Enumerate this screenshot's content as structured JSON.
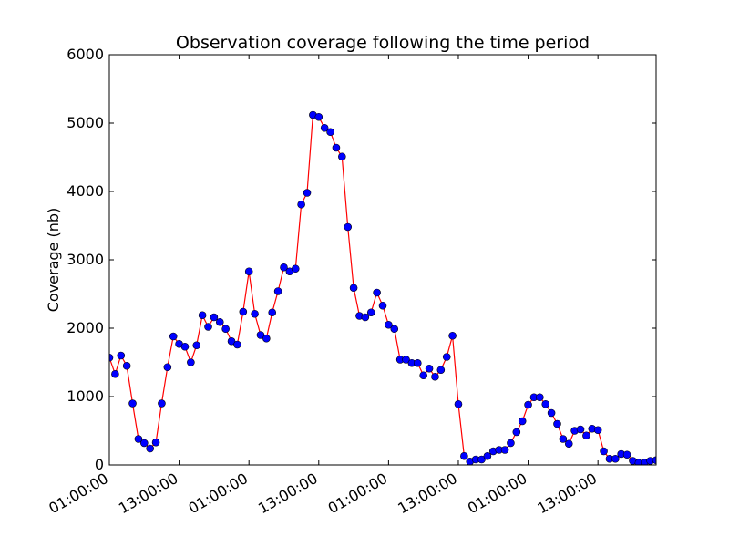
{
  "chart_data": {
    "type": "line",
    "title": "Observation coverage following the time period",
    "xlabel": "",
    "ylabel": "Coverage (nb)",
    "ylim": [
      0,
      6000
    ],
    "yticks": [
      0,
      1000,
      2000,
      3000,
      4000,
      5000,
      6000
    ],
    "xlim": [
      0,
      94
    ],
    "xticks": [
      {
        "x": 0,
        "label": "01:00:00"
      },
      {
        "x": 12,
        "label": "13:00:00"
      },
      {
        "x": 24,
        "label": "01:00:00"
      },
      {
        "x": 36,
        "label": "13:00:00"
      },
      {
        "x": 48,
        "label": "01:00:00"
      },
      {
        "x": 60,
        "label": "13:00:00"
      },
      {
        "x": 72,
        "label": "01:00:00"
      },
      {
        "x": 84,
        "label": "13:00:00"
      }
    ],
    "grid": false,
    "line_color": "#ff0000",
    "marker_color": "#0000ff",
    "series": [
      {
        "x": [
          0,
          1,
          2,
          3,
          4,
          5,
          6,
          7,
          8,
          9,
          10,
          11,
          12,
          13,
          14,
          15,
          16,
          17,
          18,
          19,
          20,
          21,
          22,
          23,
          24,
          25,
          26,
          27,
          28,
          29,
          30,
          31,
          32,
          33,
          34,
          35,
          36,
          37,
          38,
          39,
          40,
          41,
          42,
          43,
          44,
          45,
          46,
          47,
          48,
          49,
          50,
          51,
          52,
          53,
          54,
          55,
          56,
          57,
          58,
          59,
          60,
          61,
          62,
          63,
          64,
          65,
          66,
          67,
          68,
          69,
          70,
          71,
          72,
          73,
          74,
          75,
          76,
          77,
          78,
          79,
          80,
          81,
          82,
          83,
          84,
          85,
          86,
          87,
          88,
          89,
          90,
          91,
          92,
          93,
          94
        ],
        "values": [
          1570,
          1330,
          1600,
          1450,
          900,
          380,
          320,
          240,
          330,
          900,
          1430,
          1880,
          1770,
          1730,
          1500,
          1750,
          2190,
          2020,
          2160,
          2090,
          1990,
          1810,
          1760,
          2240,
          2830,
          2210,
          1900,
          1850,
          2230,
          2540,
          2890,
          2830,
          2870,
          3810,
          3980,
          5120,
          5090,
          4930,
          4870,
          4640,
          4510,
          3480,
          2590,
          2180,
          2160,
          2230,
          2520,
          2330,
          2050,
          1990,
          1540,
          1540,
          1490,
          1490,
          1310,
          1410,
          1290,
          1390,
          1580,
          1890,
          890,
          130,
          50,
          80,
          80,
          130,
          200,
          220,
          220,
          320,
          480,
          640,
          880,
          990,
          990,
          890,
          760,
          600,
          380,
          310,
          500,
          520,
          430,
          530,
          510,
          200,
          90,
          90,
          160,
          150,
          60,
          30,
          30,
          60,
          70
        ]
      }
    ]
  }
}
